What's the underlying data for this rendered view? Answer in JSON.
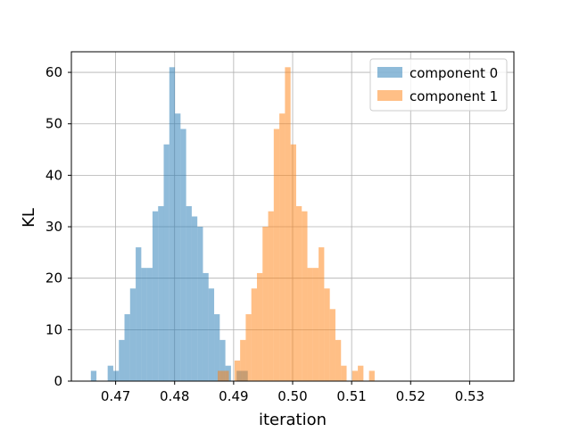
{
  "chart_data": {
    "type": "histogram",
    "title": "",
    "xlabel": "iteration",
    "ylabel": "KL",
    "xlim": [
      0.4625,
      0.5375
    ],
    "ylim": [
      0,
      64
    ],
    "xticks": [
      {
        "value": 0.47,
        "label": "0.47"
      },
      {
        "value": 0.48,
        "label": "0.48"
      },
      {
        "value": 0.49,
        "label": "0.49"
      },
      {
        "value": 0.5,
        "label": "0.50"
      },
      {
        "value": 0.51,
        "label": "0.51"
      },
      {
        "value": 0.52,
        "label": "0.52"
      },
      {
        "value": 0.53,
        "label": "0.53"
      }
    ],
    "yticks": [
      {
        "value": 0,
        "label": "0"
      },
      {
        "value": 10,
        "label": "10"
      },
      {
        "value": 20,
        "label": "20"
      },
      {
        "value": 30,
        "label": "30"
      },
      {
        "value": 40,
        "label": "40"
      },
      {
        "value": 50,
        "label": "50"
      },
      {
        "value": 60,
        "label": "60"
      }
    ],
    "grid": true,
    "legend": "top-right",
    "series": [
      {
        "name": "component 0",
        "color": "#1f77b4",
        "alpha": 0.5,
        "bin_start": 0.4658,
        "bin_width": 0.00095,
        "counts": [
          2,
          0,
          0,
          3,
          2,
          8,
          13,
          18,
          26,
          22,
          22,
          33,
          34,
          46,
          61,
          52,
          49,
          34,
          32,
          30,
          21,
          18,
          13,
          8,
          3,
          0,
          2,
          2
        ]
      },
      {
        "name": "component 1",
        "color": "#ff7f0e",
        "alpha": 0.5,
        "bin_start": 0.4873,
        "bin_width": 0.00095,
        "counts": [
          2,
          2,
          0,
          4,
          8,
          13,
          18,
          21,
          30,
          33,
          49,
          52,
          61,
          46,
          34,
          33,
          22,
          22,
          26,
          18,
          14,
          8,
          3,
          0,
          2,
          3,
          0,
          2
        ]
      }
    ]
  }
}
